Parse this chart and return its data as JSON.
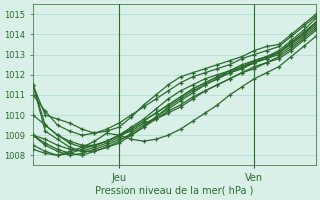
{
  "bg_color": "#d8f0e8",
  "grid_color": "#aaddcc",
  "line_color": "#2d6a2d",
  "axis_color": "#336633",
  "text_color": "#2d6a2d",
  "xlabel": "Pression niveau de la mer( hPa )",
  "vline_labels": [
    "Jeu",
    "Ven"
  ],
  "ylim": [
    1007.5,
    1015.5
  ],
  "yticks": [
    1008,
    1009,
    1010,
    1011,
    1012,
    1013,
    1014,
    1015
  ],
  "vline_x": [
    7,
    18
  ],
  "series": [
    [
      1011.5,
      1010.0,
      1009.8,
      1009.6,
      1009.3,
      1009.1,
      1009.2,
      1009.4,
      1009.9,
      1010.5,
      1011.0,
      1011.5,
      1011.9,
      1012.1,
      1012.3,
      1012.5,
      1012.7,
      1012.9,
      1013.2,
      1013.4,
      1013.5,
      1014.0,
      1014.5,
      1015.0
    ],
    [
      1011.5,
      1009.5,
      1009.0,
      1008.6,
      1008.4,
      1008.5,
      1008.7,
      1009.0,
      1009.4,
      1009.8,
      1010.3,
      1010.8,
      1011.2,
      1011.5,
      1011.8,
      1012.0,
      1012.2,
      1012.5,
      1012.7,
      1012.9,
      1013.2,
      1013.7,
      1014.2,
      1014.8
    ],
    [
      1011.5,
      1009.2,
      1008.8,
      1008.4,
      1008.2,
      1008.2,
      1008.4,
      1008.6,
      1009.0,
      1009.4,
      1009.9,
      1010.4,
      1010.8,
      1011.2,
      1011.5,
      1011.8,
      1012.1,
      1012.3,
      1012.6,
      1012.8,
      1013.1,
      1013.6,
      1014.0,
      1014.6
    ],
    [
      1011.0,
      1010.2,
      1009.5,
      1009.2,
      1009.0,
      1009.1,
      1009.3,
      1009.6,
      1010.0,
      1010.4,
      1010.8,
      1011.2,
      1011.6,
      1011.9,
      1012.1,
      1012.3,
      1012.5,
      1012.8,
      1013.0,
      1013.2,
      1013.4,
      1013.9,
      1014.4,
      1014.9
    ],
    [
      1010.0,
      1009.5,
      1009.0,
      1008.7,
      1008.5,
      1008.5,
      1008.7,
      1009.0,
      1009.3,
      1009.7,
      1010.1,
      1010.5,
      1010.9,
      1011.3,
      1011.6,
      1011.9,
      1012.2,
      1012.4,
      1012.7,
      1012.9,
      1013.1,
      1013.6,
      1014.1,
      1014.6
    ],
    [
      1009.0,
      1008.8,
      1008.5,
      1008.3,
      1008.2,
      1008.4,
      1008.6,
      1008.9,
      1009.3,
      1009.7,
      1010.1,
      1010.5,
      1010.9,
      1011.3,
      1011.6,
      1011.9,
      1012.1,
      1012.4,
      1012.6,
      1012.9,
      1013.1,
      1013.5,
      1014.0,
      1014.5
    ],
    [
      1009.0,
      1008.6,
      1008.3,
      1008.1,
      1008.0,
      1008.2,
      1008.4,
      1008.7,
      1009.1,
      1009.5,
      1009.9,
      1010.3,
      1010.7,
      1011.1,
      1011.5,
      1011.8,
      1012.1,
      1012.3,
      1012.6,
      1012.8,
      1013.0,
      1013.4,
      1013.9,
      1014.4
    ],
    [
      1009.0,
      1008.5,
      1008.2,
      1008.0,
      1008.1,
      1008.3,
      1008.5,
      1008.8,
      1009.0,
      1009.4,
      1009.8,
      1010.2,
      1010.5,
      1010.9,
      1011.2,
      1011.5,
      1011.8,
      1012.1,
      1012.4,
      1012.6,
      1012.9,
      1013.3,
      1013.8,
      1014.3
    ],
    [
      1008.5,
      1008.2,
      1008.0,
      1008.1,
      1008.3,
      1008.5,
      1008.7,
      1009.0,
      1009.2,
      1009.6,
      1009.8,
      1010.1,
      1010.4,
      1010.8,
      1011.2,
      1011.5,
      1011.8,
      1012.1,
      1012.3,
      1012.6,
      1012.8,
      1013.2,
      1013.7,
      1014.2
    ],
    [
      1008.3,
      1008.1,
      1008.0,
      1008.2,
      1008.4,
      1008.7,
      1009.1,
      1009.0,
      1008.8,
      1008.7,
      1008.8,
      1009.0,
      1009.3,
      1009.7,
      1010.1,
      1010.5,
      1011.0,
      1011.4,
      1011.8,
      1012.1,
      1012.4,
      1012.9,
      1013.4,
      1013.9
    ]
  ]
}
